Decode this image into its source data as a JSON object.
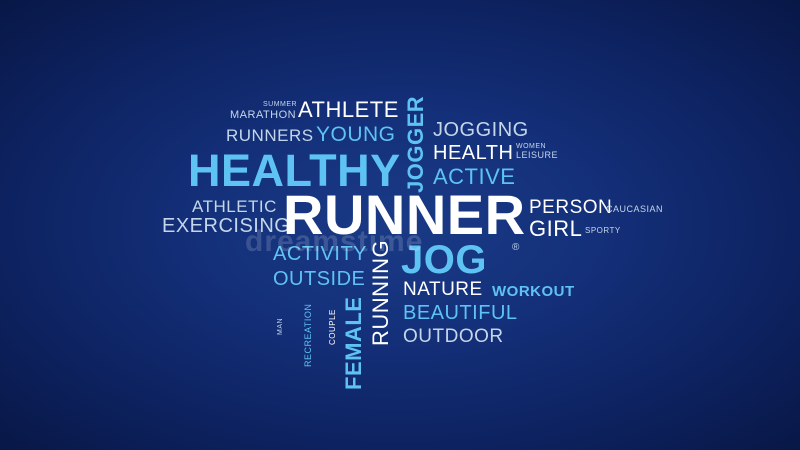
{
  "words": {
    "summer": "SUMMER",
    "marathon": "MARATHON",
    "athlete": "ATHLETE",
    "runners": "RUNNERS",
    "young": "YOUNG",
    "healthy": "HEALTHY",
    "jogger": "JOGGER",
    "jogging": "JOGGING",
    "women": "WOMEN",
    "health": "HEALTH",
    "leisure": "LEISURE",
    "active": "ACTIVE",
    "athletic": "ATHLETIC",
    "exercising": "EXERCISING",
    "runner": "RUNNER",
    "person": "PERSON",
    "caucasian": "CAUCASIAN",
    "girl": "GIRL",
    "sporty": "SPORTY",
    "activity": "ACTIVITY",
    "jog": "JOG",
    "outside": "OUTSIDE",
    "running": "RUNNING",
    "nature": "NATURE",
    "workout": "WORKOUT",
    "beautiful": "BEAUTIFUL",
    "man": "MAN",
    "recreation": "RECREATION",
    "couple": "COUPLE",
    "female": "FEMALE",
    "outdoor": "OUTDOOR"
  },
  "watermark": "dreamstime",
  "registered_mark": "®",
  "colors": {
    "background": "#14307a",
    "white": "#ffffff",
    "light_blue": "#5ec3f2",
    "grey": "#c4d6ea"
  }
}
